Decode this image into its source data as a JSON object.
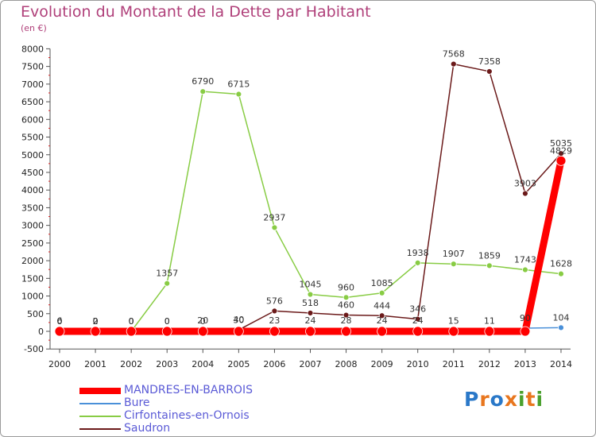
{
  "chart_data": {
    "type": "line",
    "title": "Evolution du Montant de la Dette par Habitant",
    "subtitle": "(en €)",
    "x": [
      "2000",
      "2001",
      "2002",
      "2003",
      "2004",
      "2005",
      "2006",
      "2007",
      "2008",
      "2009",
      "2010",
      "2011",
      "2012",
      "2013",
      "2014"
    ],
    "ylim": [
      -500,
      8000
    ],
    "yticks": [
      -500,
      0,
      500,
      1000,
      1500,
      2000,
      2500,
      3000,
      3500,
      4000,
      4500,
      5000,
      5500,
      6000,
      6500,
      7000,
      7500,
      8000
    ],
    "grid": false,
    "legend_position": "bottom-left",
    "series": [
      {
        "name": "MANDRES-EN-BARROIS",
        "color": "#ff0000",
        "values": [
          0,
          0,
          0,
          0,
          0,
          0,
          0,
          0,
          0,
          0,
          0,
          0,
          0,
          0,
          4829
        ],
        "labels": [
          "",
          "",
          "",
          "",
          "",
          "",
          "",
          "",
          "",
          "",
          "",
          "",
          "",
          "",
          "4829"
        ]
      },
      {
        "name": "Bure",
        "color": "#4a90d9",
        "values": [
          6,
          2,
          0,
          0,
          20,
          30,
          23,
          24,
          28,
          24,
          24,
          15,
          11,
          90,
          104
        ],
        "labels": [
          "6",
          "2",
          "0",
          "0",
          "20",
          "30",
          "23",
          "24",
          "28",
          "24",
          "24",
          "15",
          "11",
          "90",
          "104"
        ]
      },
      {
        "name": "Cirfontaines-en-Ornois",
        "color": "#88cc44",
        "values": [
          0,
          0,
          0,
          1357,
          6790,
          6715,
          2937,
          1045,
          960,
          1085,
          1938,
          1907,
          1859,
          1743,
          1628
        ],
        "labels": [
          "0",
          "0",
          "0",
          "1357",
          "6790",
          "6715",
          "2937",
          "1045",
          "960",
          "1085",
          "1938",
          "1907",
          "1859",
          "1743",
          "1628"
        ]
      },
      {
        "name": "Saudron",
        "color": "#6b1a1a",
        "values": [
          0,
          0,
          0,
          0,
          0,
          40,
          576,
          518,
          460,
          444,
          346,
          7568,
          7358,
          3903,
          5035
        ],
        "labels": [
          "0",
          "0",
          "0",
          "0",
          "0",
          "40",
          "576",
          "518",
          "460",
          "444",
          "346",
          "7568",
          "7358",
          "3903",
          "5035"
        ]
      }
    ]
  },
  "logo": {
    "text": "Proxiti",
    "letters": [
      "P",
      "r",
      "o",
      "x",
      "i",
      "t",
      "i"
    ],
    "colors": [
      "#2a78c8",
      "#e8761e",
      "#2a78c8",
      "#e8761e",
      "#4aa02c",
      "#e8761e",
      "#4aa02c"
    ]
  }
}
